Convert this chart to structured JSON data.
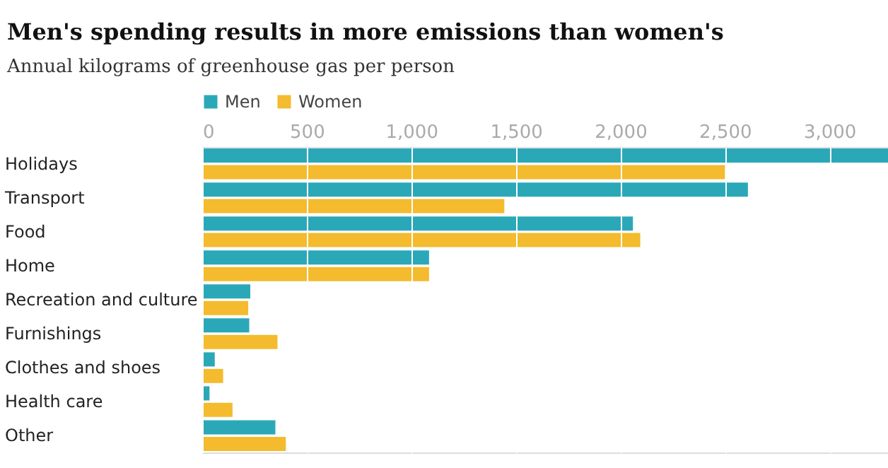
{
  "chart_data": {
    "type": "bar",
    "orientation": "horizontal",
    "title": "Men's spending results in more emissions than women's",
    "subtitle": "Annual kilograms of greenhouse gas per person",
    "categories": [
      "Holidays",
      "Transport",
      "Food",
      "Home",
      "Recreation and culture",
      "Furnishings",
      "Clothes and shoes",
      "Health care",
      "Other"
    ],
    "series": [
      {
        "name": "Men",
        "color": "#2ba8b8",
        "values": [
          3280,
          2610,
          2060,
          1085,
          230,
          225,
          60,
          35,
          350
        ]
      },
      {
        "name": "Women",
        "color": "#f3bb2d",
        "values": [
          2500,
          1445,
          2095,
          1085,
          220,
          360,
          100,
          145,
          400
        ]
      }
    ],
    "xlim": [
      0,
      3280
    ],
    "xticks": [
      0,
      500,
      {
        "value": 1000,
        "label": "1,000"
      },
      {
        "value": 1500,
        "label": "1,500"
      },
      {
        "value": 2000,
        "label": "2,000"
      },
      {
        "value": 2500,
        "label": "2,500"
      },
      {
        "value": 3000,
        "label": "3,000"
      }
    ],
    "grid": "x",
    "legend": "top left"
  }
}
